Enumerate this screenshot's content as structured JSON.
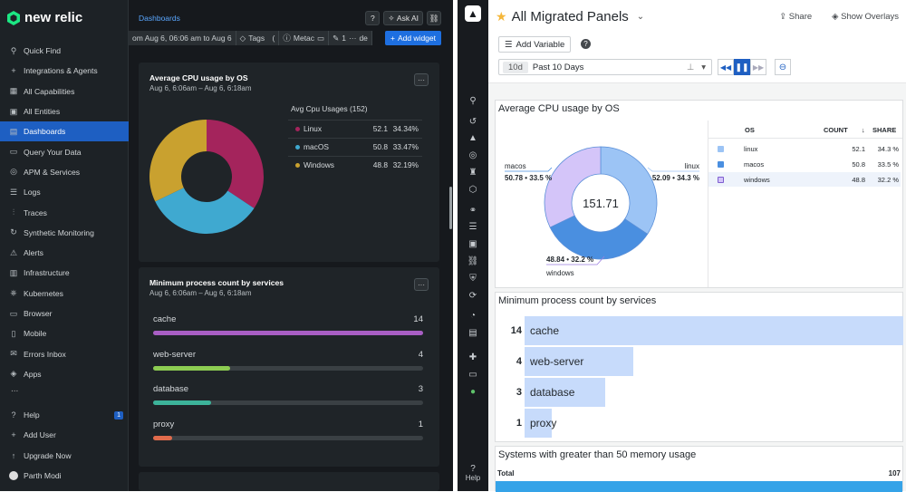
{
  "newrelic": {
    "brand": "new relic",
    "nav": [
      {
        "label": "Quick Find",
        "icon": "search-icon",
        "glyph": "⚲"
      },
      {
        "label": "Integrations & Agents",
        "icon": "plus-icon",
        "glyph": "+"
      },
      {
        "label": "All Capabilities",
        "icon": "grid-icon",
        "glyph": "▦"
      },
      {
        "label": "All Entities",
        "icon": "entities-icon",
        "glyph": "▣"
      },
      {
        "label": "Dashboards",
        "icon": "dashboard-icon",
        "glyph": "▤"
      },
      {
        "label": "Query Your Data",
        "icon": "query-icon",
        "glyph": "▭"
      },
      {
        "label": "APM & Services",
        "icon": "globe-icon",
        "glyph": "◎"
      },
      {
        "label": "Logs",
        "icon": "logs-icon",
        "glyph": "☰"
      },
      {
        "label": "Traces",
        "icon": "traces-icon",
        "glyph": "⫶"
      },
      {
        "label": "Synthetic Monitoring",
        "icon": "synthetic-icon",
        "glyph": "↻"
      },
      {
        "label": "Alerts",
        "icon": "alert-icon",
        "glyph": "⚠"
      },
      {
        "label": "Infrastructure",
        "icon": "infra-icon",
        "glyph": "▥"
      },
      {
        "label": "Kubernetes",
        "icon": "kubernetes-icon",
        "glyph": "⎈"
      },
      {
        "label": "Browser",
        "icon": "browser-icon",
        "glyph": "▭"
      },
      {
        "label": "Mobile",
        "icon": "mobile-icon",
        "glyph": "▯"
      },
      {
        "label": "Errors Inbox",
        "icon": "inbox-icon",
        "glyph": "✉"
      },
      {
        "label": "Apps",
        "icon": "apps-icon",
        "glyph": "◈"
      }
    ],
    "nav_more": "...",
    "active_index": 4,
    "bottom": {
      "help": "Help",
      "help_badge": "1",
      "add_user": "Add User",
      "upgrade": "Upgrade Now",
      "user": "Parth Modi"
    },
    "breadcrumb": "Dashboards",
    "ask_ai": "Ask AI",
    "toolbar": {
      "time_range": "om Aug 6, 06:06 am to Aug 6",
      "tags": "Tags",
      "tags_count": "(",
      "metadata": "Metac",
      "edit_count": "1",
      "edit_suffix": "de",
      "add_widget": "Add widget"
    },
    "cpu_card": {
      "title": "Average CPU usage by OS",
      "subtitle": "Aug 6, 6:06am – Aug 6, 6:18am",
      "legend_title": "Avg Cpu Usages (152)",
      "rows": [
        {
          "name": "Linux",
          "value": "52.1",
          "pct": "34.34%",
          "color": "#a4245c"
        },
        {
          "name": "macOS",
          "value": "50.8",
          "pct": "33.47%",
          "color": "#3fa9d0"
        },
        {
          "name": "Windows",
          "value": "48.8",
          "pct": "32.19%",
          "color": "#c9a12f"
        }
      ]
    },
    "proc_card": {
      "title": "Minimum process count by services",
      "subtitle": "Aug 6, 6:06am – Aug 6, 6:18am",
      "rows": [
        {
          "name": "cache",
          "value": "14",
          "fraction": 1.0,
          "color": "#a85ec4"
        },
        {
          "name": "web-server",
          "value": "4",
          "fraction": 0.286,
          "color": "#8dcc52"
        },
        {
          "name": "database",
          "value": "3",
          "fraction": 0.214,
          "color": "#3cb39a"
        },
        {
          "name": "proxy",
          "value": "1",
          "fraction": 0.071,
          "color": "#e06b4c"
        }
      ]
    }
  },
  "grafana": {
    "title": "All Migrated Panels",
    "share": "Share",
    "overlays": "Show Overlays",
    "add_variable": "Add Variable",
    "time_badge": "10d",
    "time_range": "Past 10 Days",
    "help_label": "Help",
    "cpu_panel": {
      "title": "Average CPU usage by OS",
      "total": "151.71",
      "labels": {
        "macos": "macos",
        "macos_val": "50.78 • 33.5 %",
        "linux": "linux",
        "linux_val": "52.09 • 34.3 %",
        "windows": "windows",
        "windows_val": "48.84 • 32.2 %"
      },
      "headers": {
        "os": "OS",
        "count": "COUNT",
        "share": "SHARE"
      },
      "rows": [
        {
          "os": "linux",
          "count": "52.1",
          "share": "34.3 %",
          "color": "#9cc4f5"
        },
        {
          "os": "macos",
          "count": "50.8",
          "share": "33.5 %",
          "color": "#4a8fe0"
        },
        {
          "os": "windows",
          "count": "48.8",
          "share": "32.2 %",
          "color": "#d4c5f9"
        }
      ]
    },
    "proc_panel": {
      "title": "Minimum process count by services",
      "rows": [
        {
          "name": "cache",
          "value": "14",
          "fraction": 1.0
        },
        {
          "name": "web-server",
          "value": "4",
          "fraction": 0.286
        },
        {
          "name": "database",
          "value": "3",
          "fraction": 0.214
        },
        {
          "name": "proxy",
          "value": "1",
          "fraction": 0.071
        }
      ]
    },
    "mem_panel": {
      "title": "Systems with greater than 50 memory usage",
      "total_label": "Total",
      "total_value": "107"
    }
  }
}
